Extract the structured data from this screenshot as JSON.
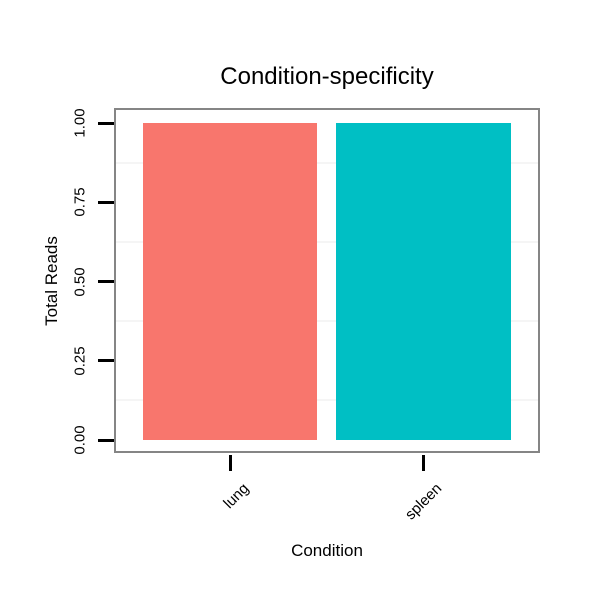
{
  "chart_data": {
    "type": "bar",
    "title": "Condition-specificity",
    "xlabel": "Condition",
    "ylabel": "Total Reads",
    "categories": [
      "lung",
      "spleen"
    ],
    "values": [
      1.0,
      1.0
    ],
    "series": [
      {
        "name": "lung",
        "values": [
          1.0
        ],
        "color": "#F8766D"
      },
      {
        "name": "spleen",
        "values": [
          1.0
        ],
        "color": "#00BFC4"
      }
    ],
    "bar_colors": [
      "#F8766D",
      "#00BFC4"
    ],
    "ylim": [
      0,
      1
    ],
    "y_tick_values": [
      0,
      0.25,
      0.5,
      0.75,
      1
    ],
    "y_tick_labels": [
      "0.00",
      "0.25",
      "0.50",
      "0.75",
      "1.00"
    ],
    "minor_gridlines": [
      0.125,
      0.375,
      0.625,
      0.875
    ],
    "grid": "minor-only",
    "legend": "none",
    "x_tick_label_rotation_deg": 45,
    "y_tick_label_rotation_deg": 90
  },
  "colors": {
    "bar_lung": "#F8766D",
    "bar_spleen": "#00BFC4",
    "panel_border": "#858585",
    "minor_grid": "#f5f5f5",
    "tick": "#000000",
    "text": "#000000",
    "background": "#ffffff"
  }
}
